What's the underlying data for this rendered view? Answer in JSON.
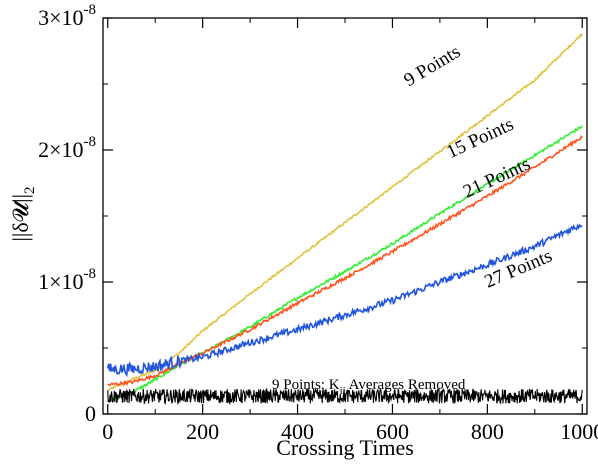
{
  "chart_data": {
    "type": "line",
    "xlabel": "Crossing Times",
    "ylabel": "||δ𝓤||",
    "ylabel_sub": "2",
    "xlim": [
      -10,
      1010
    ],
    "ylim": [
      0,
      3e-08
    ],
    "xticks": [
      0,
      200,
      400,
      600,
      800,
      1000
    ],
    "xtick_labels": [
      "0",
      "200",
      "400",
      "600",
      "800",
      "1000"
    ],
    "yticks": [
      0,
      1e-08,
      2e-08,
      3e-08
    ],
    "ytick_labels": [
      {
        "mant": "0",
        "exp": ""
      },
      {
        "mant": "1×10",
        "exp": "-8"
      },
      {
        "mant": "2×10",
        "exp": "-8"
      },
      {
        "mant": "3×10",
        "exp": "-8"
      }
    ],
    "series": [
      {
        "name": "9 Points",
        "color": "#e0c341",
        "noise": 8e-11,
        "x": [
          0,
          50,
          100,
          150,
          200,
          300,
          400,
          500,
          600,
          700,
          800,
          900,
          1000
        ],
        "y": [
          1.8e-09,
          2.6e-09,
          3.3e-09,
          4.6e-09,
          6.3e-09,
          9.1e-09,
          1.18e-08,
          1.45e-08,
          1.72e-08,
          1.99e-08,
          2.26e-08,
          2.53e-08,
          2.88e-08
        ]
      },
      {
        "name": "15 Points",
        "color": "#33ee33",
        "noise": 1e-10,
        "x": [
          0,
          50,
          100,
          150,
          200,
          300,
          400,
          500,
          600,
          700,
          800,
          900,
          1000
        ],
        "y": [
          1e-09,
          1.6e-09,
          2.6e-09,
          3.7e-09,
          4.6e-09,
          6.6e-09,
          8.8e-09,
          1.08e-08,
          1.29e-08,
          1.52e-08,
          1.74e-08,
          1.96e-08,
          2.18e-08
        ]
      },
      {
        "name": "21 Points",
        "color": "#ff5522",
        "noise": 1.2e-10,
        "x": [
          0,
          50,
          100,
          150,
          200,
          300,
          400,
          500,
          600,
          700,
          800,
          900,
          1000
        ],
        "y": [
          2.2e-09,
          2.4e-09,
          2.9e-09,
          3.8e-09,
          4.6e-09,
          6.4e-09,
          8.4e-09,
          1.03e-08,
          1.23e-08,
          1.44e-08,
          1.65e-08,
          1.87e-08,
          2.1e-08
        ]
      },
      {
        "name": "27 Points",
        "color": "#2255dd",
        "noise": 2.5e-10,
        "x": [
          0,
          50,
          100,
          150,
          200,
          300,
          400,
          500,
          600,
          700,
          800,
          900,
          1000
        ],
        "y": [
          3.4e-09,
          3.4e-09,
          3.6e-09,
          4e-09,
          4.3e-09,
          5.4e-09,
          6.4e-09,
          7.5e-09,
          8.6e-09,
          1e-08,
          1.13e-08,
          1.27e-08,
          1.44e-08
        ]
      },
      {
        "name": "9 Points; K_ij Averages Removed",
        "color": "#000000",
        "noise": 5.5e-10,
        "x": [
          0,
          1000
        ],
        "y": [
          1.35e-09,
          1.35e-09
        ]
      }
    ],
    "annotations": [
      {
        "series": 0,
        "text": "9 Points",
        "at": [
          690,
          2.6e-08
        ],
        "angle": -31
      },
      {
        "series": 1,
        "text": "15 Points",
        "at": [
          790,
          2.05e-08
        ],
        "angle": -25
      },
      {
        "series": 2,
        "text": "21 Points",
        "at": [
          825,
          1.75e-08
        ],
        "angle": -25
      },
      {
        "series": 3,
        "text": "27 Points",
        "at": [
          870,
          1.06e-08
        ],
        "angle": -23
      }
    ],
    "note": {
      "pre": "9 Points; K",
      "sub": "ij",
      "post": " Averages Removed",
      "at": [
        550,
        1.9e-09
      ]
    },
    "grid": false,
    "legend": "none"
  }
}
